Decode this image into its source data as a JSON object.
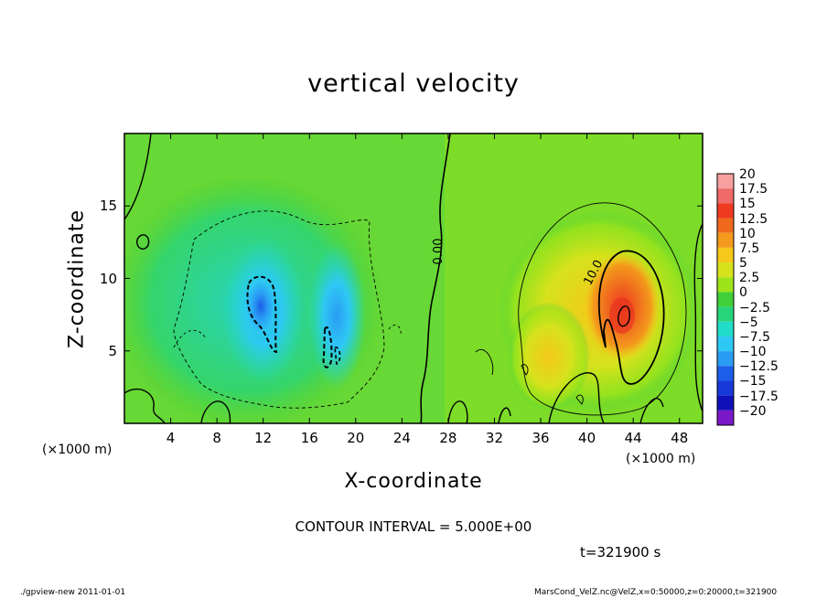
{
  "chart_data": {
    "type": "heatmap",
    "title": "vertical velocity",
    "xlabel": "X-coordinate",
    "ylabel": "Z-coordinate",
    "x_unit_left": "(×1000 m)",
    "x_unit_right": "(×1000 m)",
    "xlim": [
      0,
      50
    ],
    "ylim": [
      0,
      20
    ],
    "x_ticks": [
      4,
      8,
      12,
      16,
      20,
      24,
      28,
      32,
      36,
      40,
      44,
      48
    ],
    "y_ticks": [
      5,
      10,
      15
    ],
    "colorbar": {
      "labels": [
        "20",
        "17.5",
        "15",
        "12.5",
        "10",
        "7.5",
        "5",
        "2.5",
        "0",
        "−2.5",
        "−5",
        "−7.5",
        "−10",
        "−12.5",
        "−15",
        "−17.5",
        "−20"
      ],
      "colors": [
        "#f8a0a0",
        "#f06a6a",
        "#ef3a22",
        "#f06a1e",
        "#f39a1c",
        "#f5c81a",
        "#d6e21c",
        "#9ee41a",
        "#40cf3a",
        "#28d47a",
        "#20dcc8",
        "#2ec8f4",
        "#2a9cf4",
        "#1c5ee8",
        "#1838d8",
        "#1010b8",
        "#7a18c8"
      ]
    },
    "contour_labels": [
      "0.00",
      "10.0"
    ],
    "features": [
      {
        "name": "downdraft-core-1",
        "x": 11.5,
        "z": 8.5,
        "w": -12.5
      },
      {
        "name": "downdraft-core-2",
        "x": 17.5,
        "z": 6.0,
        "w": -7.5
      },
      {
        "name": "updraft-core",
        "x": 42.5,
        "z": 7.5,
        "w": 15.0
      }
    ],
    "contour_interval": "CONTOUR INTERVAL = 5.000E+00",
    "time": "t=321900 s"
  },
  "footer": {
    "left": "./gpview-new   2011-01-01",
    "right": "MarsCond_VelZ.nc@VelZ,x=0:50000,z=0:20000,t=321900"
  }
}
